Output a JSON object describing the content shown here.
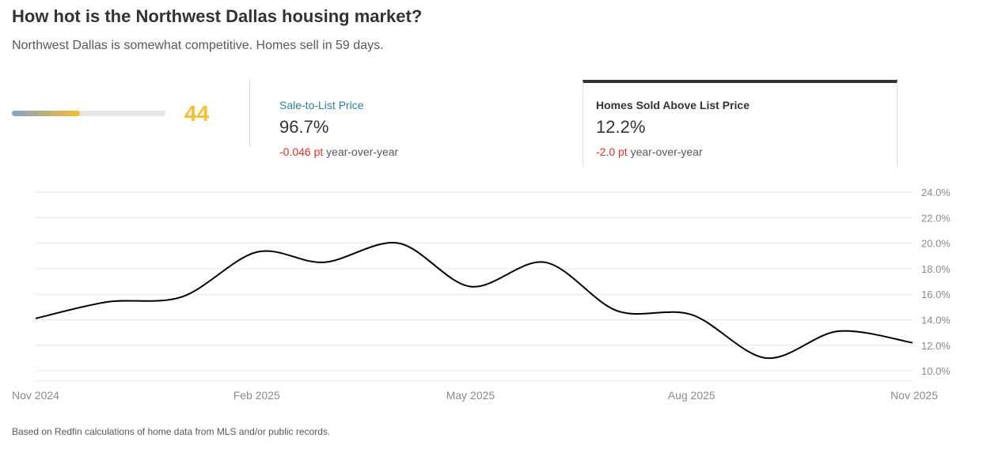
{
  "header": {
    "title": "How hot is the Northwest Dallas housing market?",
    "subtitle": "Northwest Dallas is somewhat competitive. Homes sell in 59 days."
  },
  "score": {
    "value": "44",
    "fill_fraction": 0.44,
    "gradient_start": "#7fa4c6",
    "gradient_end": "#f5bd30",
    "value_color": "#f5bd30"
  },
  "stats": {
    "sale_to_list": {
      "label": "Sale-to-List Price",
      "value": "96.7%",
      "change": "-0.046 pt",
      "change_suffix": "year-over-year"
    },
    "sold_above_list": {
      "label": "Homes Sold Above List Price",
      "value": "12.2%",
      "change": "-2.0 pt",
      "change_suffix": "year-over-year",
      "selected": true
    }
  },
  "chart_data": {
    "type": "line",
    "series": [
      {
        "x": [
          "2024-11-01",
          "2024-12-01",
          "2025-01-01",
          "2025-02-01",
          "2025-03-01",
          "2025-04-01",
          "2025-05-01",
          "2025-06-01",
          "2025-07-01",
          "2025-08-01",
          "2025-09-01",
          "2025-10-01",
          "2025-11-01"
        ],
        "values": [
          14.1,
          15.4,
          15.8,
          19.3,
          18.5,
          20.0,
          16.6,
          18.5,
          14.7,
          14.4,
          11.0,
          13.1,
          12.2
        ],
        "color": "#000000"
      }
    ],
    "x_tick_labels": [
      "Nov 2024",
      "Feb 2025",
      "May 2025",
      "Aug 2025",
      "Nov 2025"
    ],
    "y_tick_labels": [
      "10.0%",
      "12.0%",
      "14.0%",
      "16.0%",
      "18.0%",
      "20.0%",
      "22.0%",
      "24.0%"
    ],
    "y_ticks": [
      10,
      12,
      14,
      16,
      18,
      20,
      22,
      24
    ],
    "ylim": [
      9.2,
      24
    ],
    "grid": true,
    "y_axis_position": "right"
  },
  "footnote": "Based on Redfin calculations of home data from MLS and/or public records.",
  "colors": {
    "accent_link": "#2f7c9b",
    "negative": "#d3352f",
    "grid": "#e6e6e6",
    "tick_text": "#8a8a8a"
  }
}
